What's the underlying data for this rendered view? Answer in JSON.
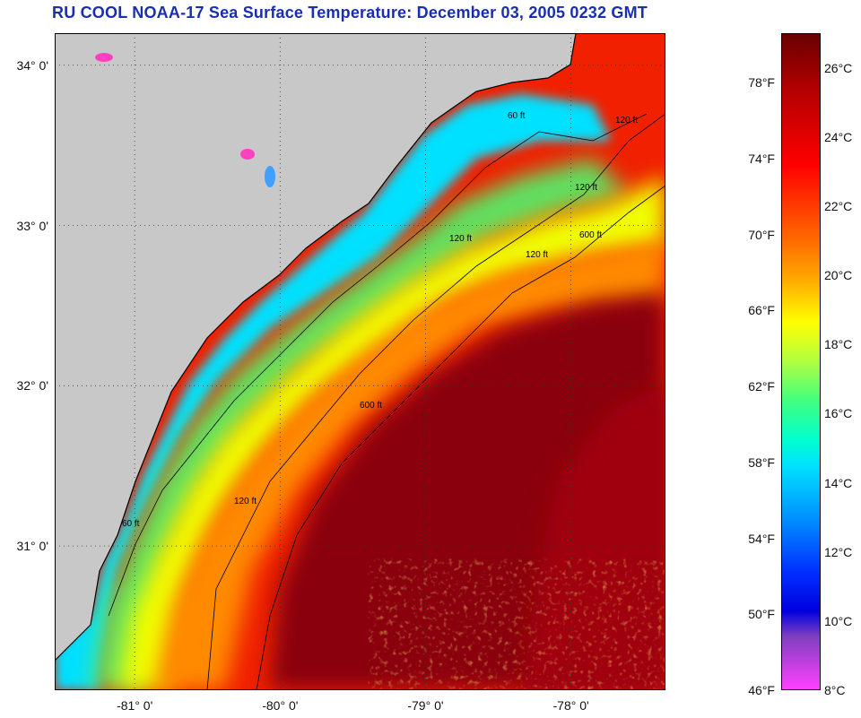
{
  "title": "RU COOL  NOAA-17  Sea Surface Temperature:  December 03, 2005 0232 GMT",
  "map": {
    "latitude_labels": [
      {
        "value": 34,
        "label": "34° 0'"
      },
      {
        "value": 33,
        "label": "33° 0'"
      },
      {
        "value": 32,
        "label": "32° 0'"
      },
      {
        "value": 31,
        "label": "31° 0'"
      }
    ],
    "longitude_labels": [
      {
        "value": -81,
        "label": "-81° 0'"
      },
      {
        "value": -80,
        "label": "-80° 0'"
      },
      {
        "value": -79,
        "label": "-79° 0'"
      },
      {
        "value": -78,
        "label": "-78° 0'"
      }
    ],
    "lat_range": [
      30.1,
      34.2
    ],
    "lon_range": [
      -81.55,
      -77.35
    ],
    "isobath_labels": [
      "60 ft",
      "120 ft",
      "600 ft"
    ],
    "colors": {
      "land": "#c8c8c8",
      "coastal_cold": "#00e8ff",
      "warm_core": "#8a0008"
    }
  },
  "colorbar": {
    "fahrenheit_ticks": [
      "78°F",
      "74°F",
      "70°F",
      "66°F",
      "62°F",
      "58°F",
      "54°F",
      "50°F",
      "46°F"
    ],
    "celsius_ticks": [
      "26°C",
      "24°C",
      "22°C",
      "20°C",
      "18°C",
      "16°C",
      "14°C",
      "12°C",
      "10°C",
      "8°C"
    ],
    "f_range": [
      46,
      80.6
    ],
    "c_range": [
      8,
      27
    ]
  }
}
